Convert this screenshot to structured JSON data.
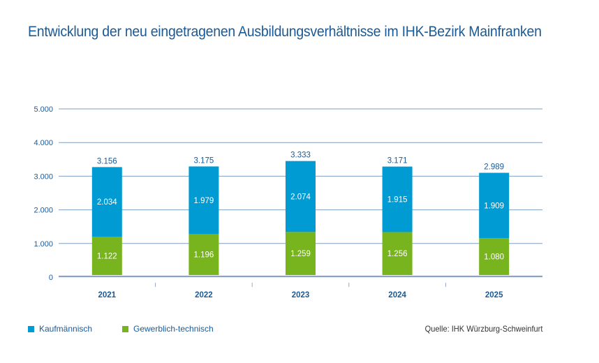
{
  "title": "Entwicklung der neu eingetragenen Ausbildungsverhältnisse im IHK-Bezirk Mainfranken",
  "source": "Quelle: IHK Würzburg-Schweinfurt",
  "colors": {
    "kaufmaennisch": "#009bd2",
    "gewerblich": "#78b41e",
    "text_blue": "#1a5a96",
    "grid": "#7f9fbf",
    "axis": "#8aa3c4"
  },
  "chart_data": {
    "type": "bar",
    "stacked": true,
    "title": "Entwicklung der neu eingetragenen Ausbildungsverhältnisse im IHK-Bezirk Mainfranken",
    "xlabel": "",
    "ylabel": "",
    "categories": [
      "2021",
      "2022",
      "2023",
      "2024",
      "2025"
    ],
    "series": [
      {
        "name": "Gewerblich-technisch",
        "values": [
          1122,
          1196,
          1259,
          1256,
          1080
        ],
        "labels": [
          "1.122",
          "1.196",
          "1.259",
          "1.256",
          "1.080"
        ]
      },
      {
        "name": "Kaufmännisch",
        "values": [
          2034,
          1979,
          2074,
          1915,
          1909
        ],
        "labels": [
          "2.034",
          "1.979",
          "2.074",
          "1.915",
          "1.909"
        ]
      }
    ],
    "totals": [
      3156,
      3175,
      3333,
      3171,
      2989
    ],
    "total_labels": [
      "3.156",
      "3.175",
      "3.333",
      "3.171",
      "2.989"
    ],
    "ylim": [
      0,
      5000
    ],
    "yticks": [
      0,
      1000,
      2000,
      3000,
      4000,
      5000
    ],
    "ytick_labels": [
      "0",
      "1.000",
      "2.000",
      "3.000",
      "4.000",
      "5.000"
    ],
    "grid": true,
    "legend": {
      "position": "bottom-left",
      "entries": [
        "Kaufmännisch",
        "Gewerblich-technisch"
      ]
    }
  }
}
